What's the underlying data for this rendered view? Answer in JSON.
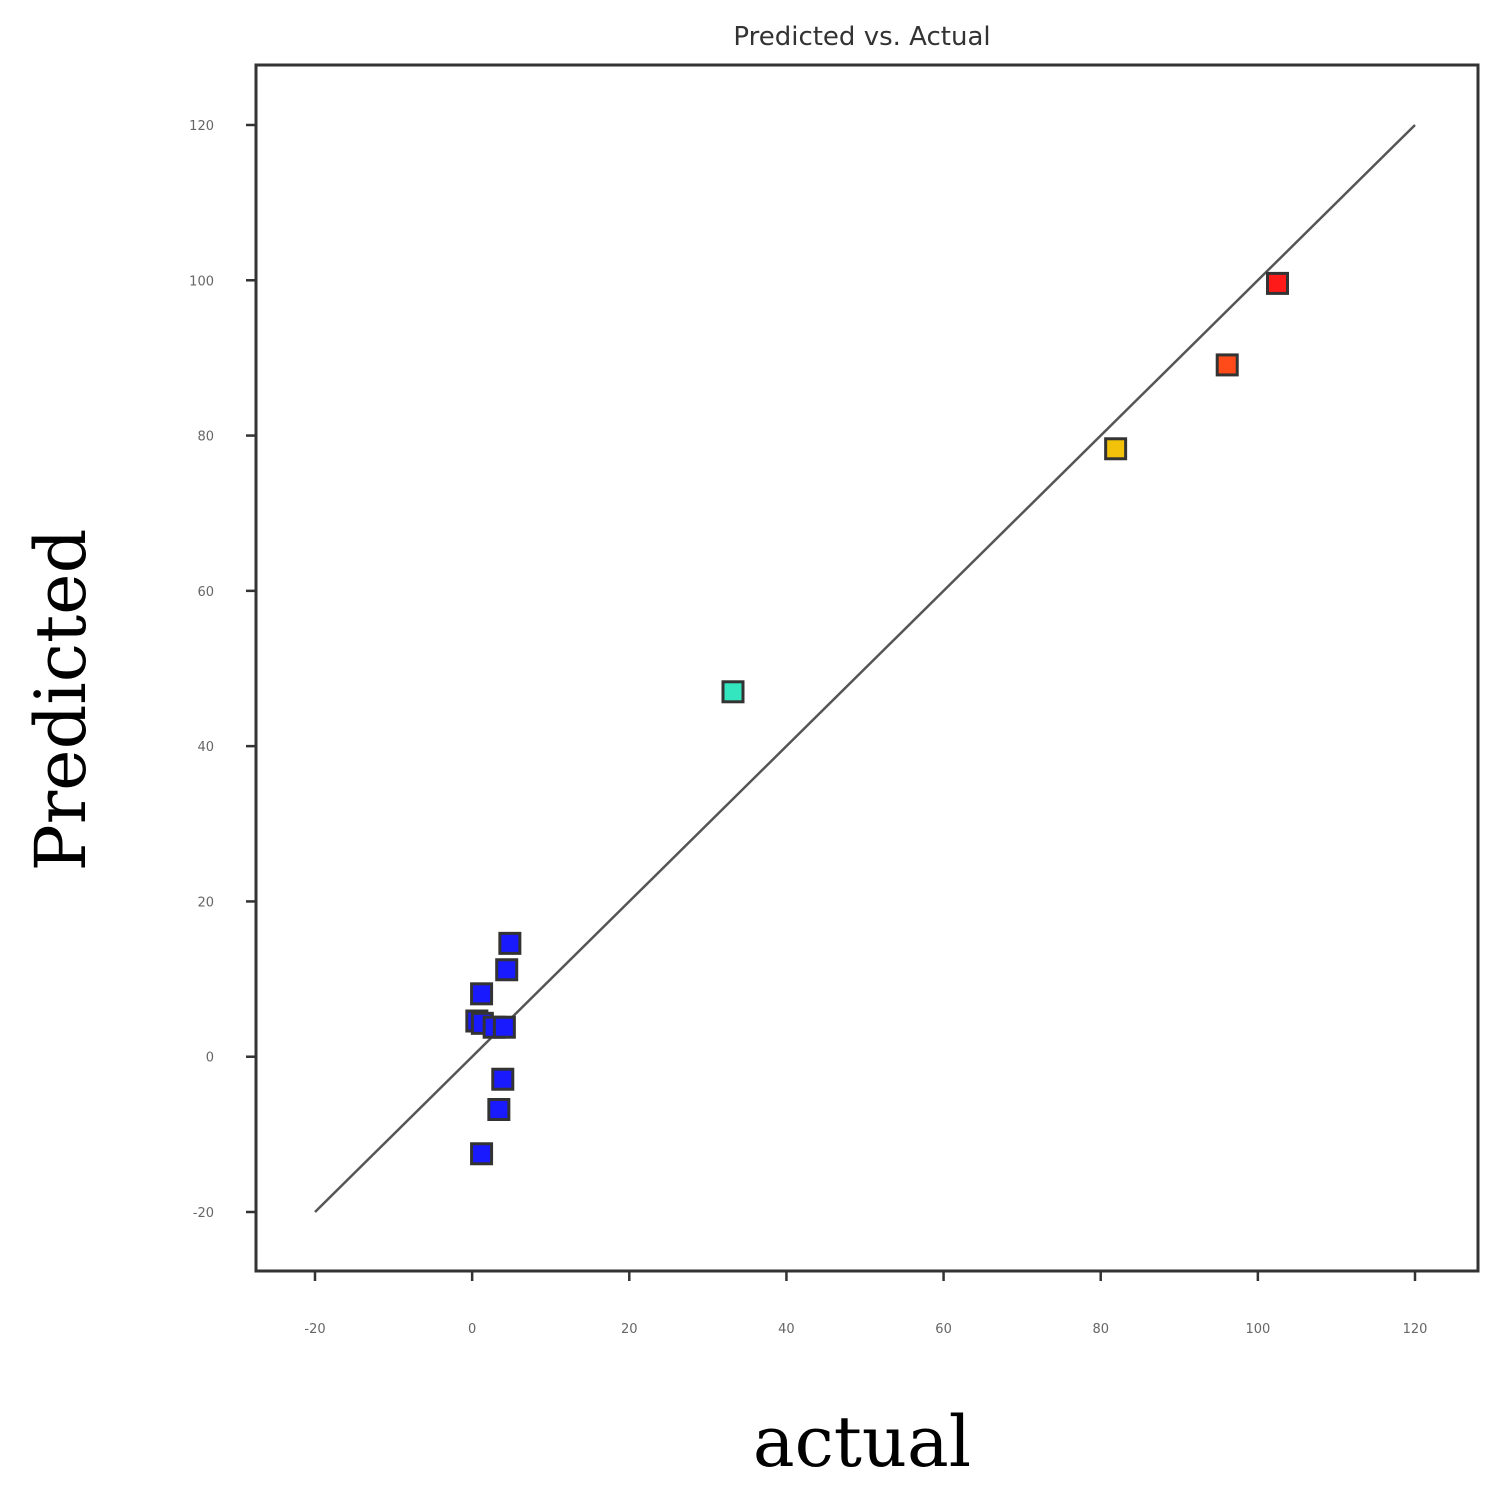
{
  "chart_data": {
    "type": "scatter",
    "title": "Predicted vs. Actual",
    "xlabel": "actual",
    "ylabel": "Predicted",
    "xlim": [
      -20,
      120
    ],
    "ylim": [
      -20,
      120
    ],
    "xticks": [
      -20,
      0,
      20,
      40,
      60,
      80,
      100,
      120
    ],
    "yticks": [
      -20,
      0,
      20,
      40,
      60,
      80,
      100,
      120
    ],
    "xtick_labels": [
      "-20",
      "0",
      "20",
      "40",
      "60",
      "80",
      "100",
      "120"
    ],
    "ytick_labels": [
      "-20",
      "0",
      "20",
      "40",
      "60",
      "80",
      "100",
      "120"
    ],
    "grid": false,
    "reference_line": {
      "from": [
        -20,
        -20
      ],
      "to": [
        120,
        120
      ],
      "color": "#555555"
    },
    "points": [
      {
        "x": 1.2,
        "y": -12.5,
        "color": "#1a1aff"
      },
      {
        "x": 3.4,
        "y": -6.8,
        "color": "#1a1aff"
      },
      {
        "x": 3.9,
        "y": -2.9,
        "color": "#1a1aff"
      },
      {
        "x": 0.6,
        "y": 4.6,
        "color": "#1a1aff"
      },
      {
        "x": 1.3,
        "y": 4.3,
        "color": "#1a1aff"
      },
      {
        "x": 2.8,
        "y": 3.8,
        "color": "#1a1aff"
      },
      {
        "x": 4.1,
        "y": 3.8,
        "color": "#1a1aff"
      },
      {
        "x": 1.2,
        "y": 8.1,
        "color": "#1a1aff"
      },
      {
        "x": 4.4,
        "y": 11.2,
        "color": "#1a1aff"
      },
      {
        "x": 4.8,
        "y": 14.6,
        "color": "#1a1aff"
      },
      {
        "x": 33.2,
        "y": 47.0,
        "color": "#33e6c0"
      },
      {
        "x": 81.9,
        "y": 78.3,
        "color": "#f2c20a"
      },
      {
        "x": 96.1,
        "y": 89.1,
        "color": "#ff4a1a"
      },
      {
        "x": 102.5,
        "y": 99.6,
        "color": "#ff1a1a"
      }
    ],
    "marker": "square"
  }
}
